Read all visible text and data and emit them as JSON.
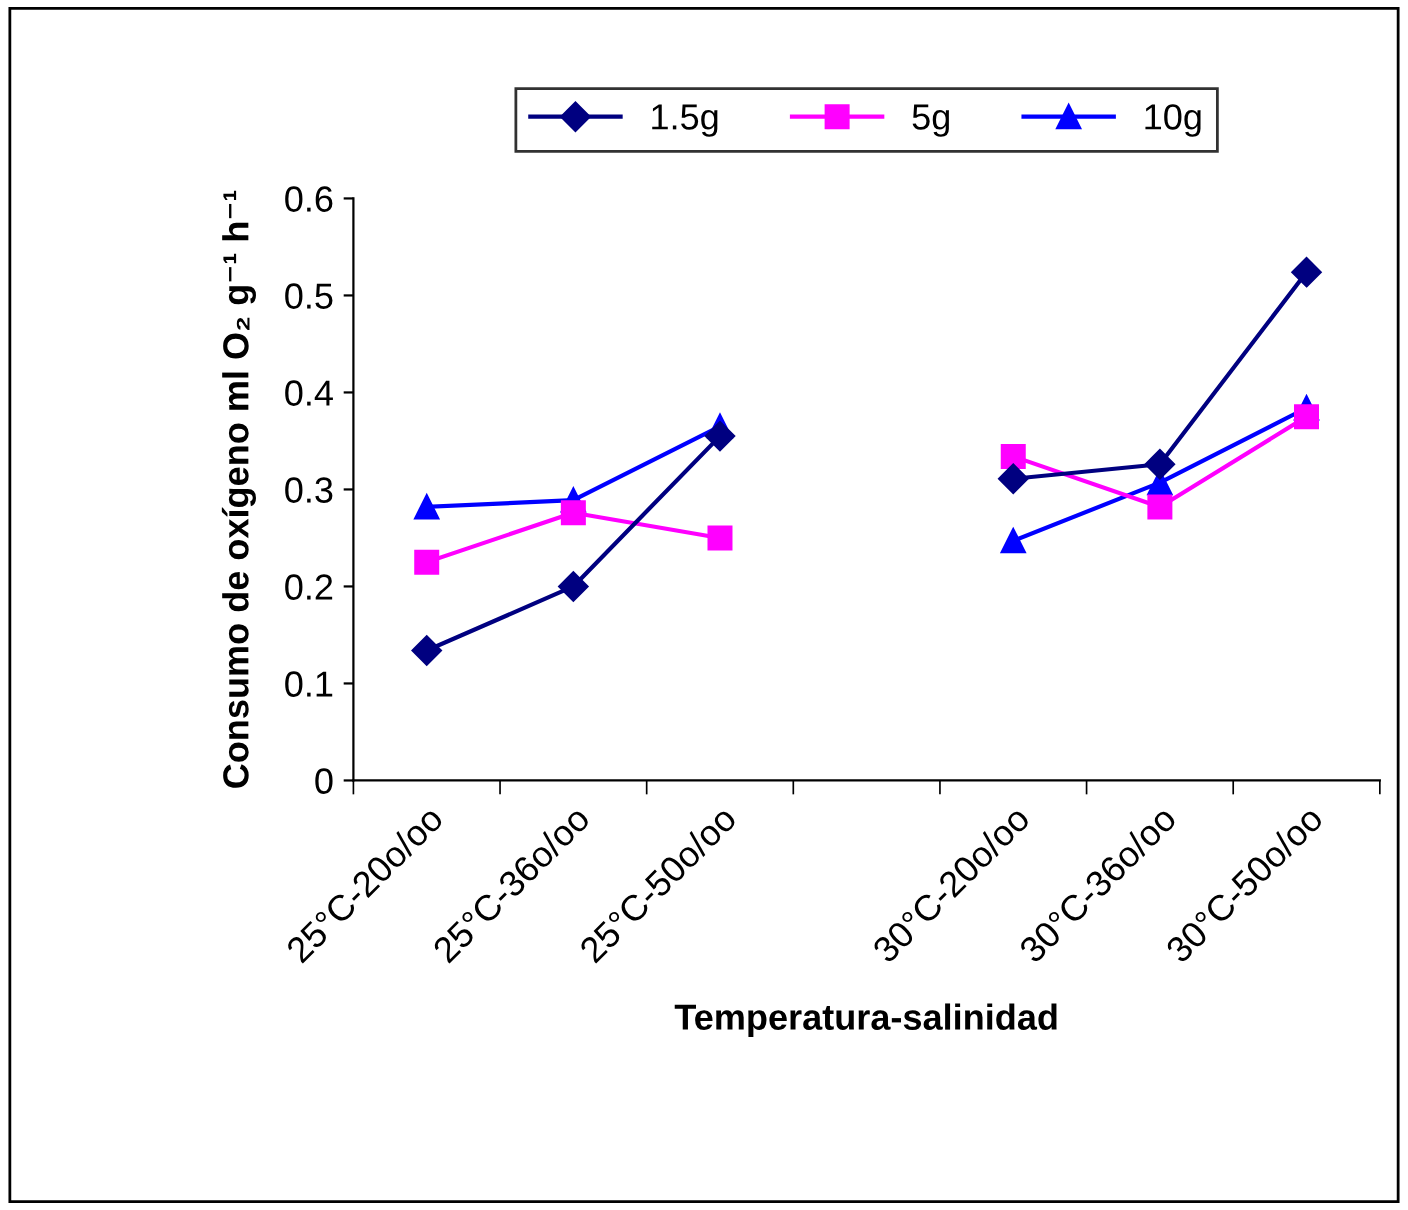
{
  "chart_data": {
    "type": "line",
    "xlabel": "Temperatura-salinidad",
    "ylabel": "Consumo de oxígeno ml O₂ g⁻¹ h⁻¹",
    "categories": [
      "25°C-20o/oo",
      "25°C-36o/oo",
      "25°C-50o/oo",
      null,
      "30°C-20o/oo",
      "30°C-36o/oo",
      "30°C-50o/oo"
    ],
    "series": [
      {
        "name": "1.5g",
        "color": "#000080",
        "marker": "diamond",
        "values": [
          0.134,
          0.2,
          0.355,
          null,
          0.311,
          0.326,
          0.524
        ]
      },
      {
        "name": "5g",
        "color": "#ff00ff",
        "marker": "square",
        "values": [
          0.225,
          0.276,
          0.25,
          null,
          0.334,
          0.282,
          0.375
        ]
      },
      {
        "name": "10g",
        "color": "#0000ff",
        "marker": "triangle",
        "values": [
          0.282,
          0.289,
          0.365,
          null,
          0.247,
          0.307,
          0.384
        ]
      }
    ],
    "ylim": [
      0,
      0.6
    ],
    "yticks": [
      {
        "value": 0,
        "label": "0"
      },
      0.1,
      0.2,
      0.3,
      0.4,
      0.5,
      0.6
    ],
    "grid": false,
    "legend": "top"
  }
}
